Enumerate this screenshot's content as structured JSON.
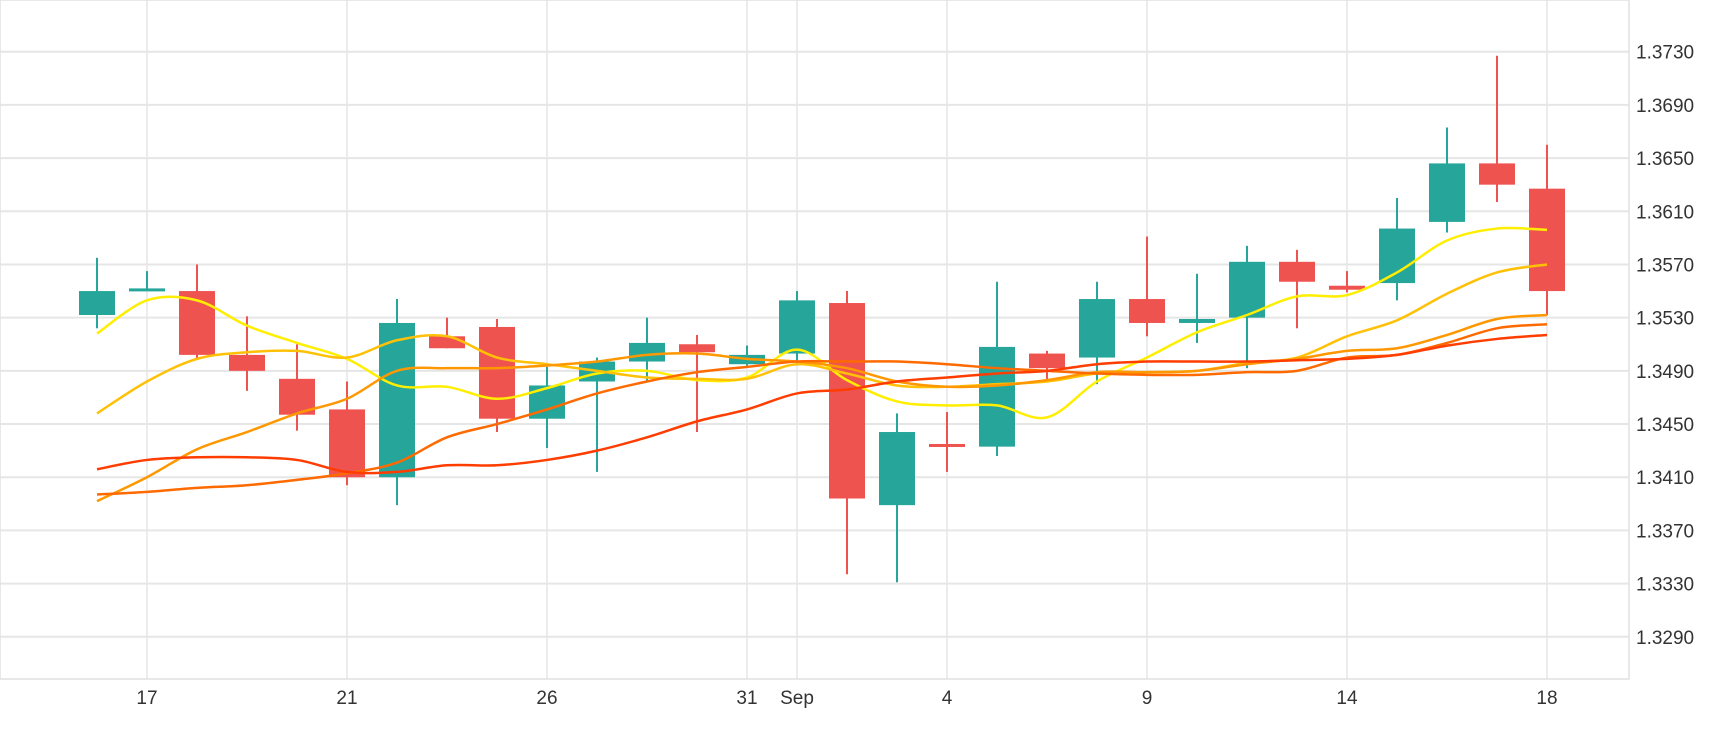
{
  "chart_data": {
    "type": "candlestick",
    "title": "",
    "xlabel": "",
    "ylabel": "",
    "ylim": [
      1.3245,
      1.3775
    ],
    "grid": true,
    "colors": {
      "up": "#26a69a",
      "down": "#ef5350",
      "grid": "#e6e6e6"
    },
    "y_ticks": [
      "1.3730",
      "1.3690",
      "1.3650",
      "1.3610",
      "1.3570",
      "1.3530",
      "1.3490",
      "1.3450",
      "1.3410",
      "1.3370",
      "1.3330",
      "1.3290"
    ],
    "x_ticks": [
      {
        "label": "17",
        "index": 1
      },
      {
        "label": "21",
        "index": 5
      },
      {
        "label": "26",
        "index": 9
      },
      {
        "label": "31",
        "index": 13
      },
      {
        "label": "Sep",
        "index": 14
      },
      {
        "label": "4",
        "index": 17
      },
      {
        "label": "9",
        "index": 21
      },
      {
        "label": "14",
        "index": 25
      },
      {
        "label": "18",
        "index": 29
      }
    ],
    "candles": [
      {
        "o": 1.3532,
        "h": 1.3575,
        "l": 1.3522,
        "c": 1.355
      },
      {
        "o": 1.3551,
        "h": 1.3565,
        "l": 1.355,
        "c": 1.3552
      },
      {
        "o": 1.355,
        "h": 1.357,
        "l": 1.3499,
        "c": 1.3502
      },
      {
        "o": 1.3502,
        "h": 1.3531,
        "l": 1.3475,
        "c": 1.349
      },
      {
        "o": 1.3484,
        "h": 1.351,
        "l": 1.3445,
        "c": 1.3457
      },
      {
        "o": 1.3461,
        "h": 1.3482,
        "l": 1.3404,
        "c": 1.341
      },
      {
        "o": 1.341,
        "h": 1.3544,
        "l": 1.3389,
        "c": 1.3526
      },
      {
        "o": 1.3516,
        "h": 1.353,
        "l": 1.3507,
        "c": 1.3507
      },
      {
        "o": 1.3523,
        "h": 1.3529,
        "l": 1.3444,
        "c": 1.3454
      },
      {
        "o": 1.3454,
        "h": 1.3493,
        "l": 1.3432,
        "c": 1.3479
      },
      {
        "o": 1.3482,
        "h": 1.35,
        "l": 1.3414,
        "c": 1.3497
      },
      {
        "o": 1.3497,
        "h": 1.353,
        "l": 1.3482,
        "c": 1.3511
      },
      {
        "o": 1.351,
        "h": 1.3517,
        "l": 1.3444,
        "c": 1.3504
      },
      {
        "o": 1.3495,
        "h": 1.3509,
        "l": 1.3494,
        "c": 1.3502
      },
      {
        "o": 1.3503,
        "h": 1.355,
        "l": 1.3494,
        "c": 1.3543
      },
      {
        "o": 1.3541,
        "h": 1.355,
        "l": 1.3337,
        "c": 1.3394
      },
      {
        "o": 1.3389,
        "h": 1.3458,
        "l": 1.3331,
        "c": 1.3444
      },
      {
        "o": 1.3435,
        "h": 1.3459,
        "l": 1.3414,
        "c": 1.3433
      },
      {
        "o": 1.3433,
        "h": 1.3557,
        "l": 1.3426,
        "c": 1.3508
      },
      {
        "o": 1.3503,
        "h": 1.3505,
        "l": 1.3483,
        "c": 1.3492
      },
      {
        "o": 1.35,
        "h": 1.3557,
        "l": 1.348,
        "c": 1.3544
      },
      {
        "o": 1.3544,
        "h": 1.3591,
        "l": 1.3516,
        "c": 1.3526
      },
      {
        "o": 1.3526,
        "h": 1.3563,
        "l": 1.3511,
        "c": 1.3529
      },
      {
        "o": 1.353,
        "h": 1.3584,
        "l": 1.3492,
        "c": 1.3572
      },
      {
        "o": 1.3572,
        "h": 1.3581,
        "l": 1.3522,
        "c": 1.3557
      },
      {
        "o": 1.3554,
        "h": 1.3565,
        "l": 1.3549,
        "c": 1.3551
      },
      {
        "o": 1.3556,
        "h": 1.362,
        "l": 1.3543,
        "c": 1.3597
      },
      {
        "o": 1.3602,
        "h": 1.3673,
        "l": 1.3594,
        "c": 1.3646
      },
      {
        "o": 1.3646,
        "h": 1.3727,
        "l": 1.3617,
        "c": 1.363
      },
      {
        "o": 1.3627,
        "h": 1.366,
        "l": 1.3532,
        "c": 1.355
      }
    ],
    "series": [
      {
        "name": "ma-yellow",
        "color": "#ffee00",
        "values": [
          1.3518,
          1.3543,
          1.3543,
          1.3524,
          1.3511,
          1.3499,
          1.3479,
          1.3478,
          1.3469,
          1.3477,
          1.3488,
          1.349,
          1.3483,
          1.3485,
          1.3506,
          1.3483,
          1.3467,
          1.3464,
          1.3464,
          1.3455,
          1.3482,
          1.35,
          1.3519,
          1.3532,
          1.3546,
          1.3547,
          1.3564,
          1.3588,
          1.3597,
          1.3596
        ]
      },
      {
        "name": "ma-amber",
        "color": "#ffc107",
        "values": [
          1.3458,
          1.3482,
          1.3499,
          1.3504,
          1.3505,
          1.35,
          1.3513,
          1.3516,
          1.35,
          1.3495,
          1.349,
          1.3485,
          1.3484,
          1.3484,
          1.3495,
          1.3488,
          1.3479,
          1.3478,
          1.348,
          1.3482,
          1.3488,
          1.3489,
          1.349,
          1.3496,
          1.35,
          1.3516,
          1.3528,
          1.3548,
          1.3564,
          1.357
        ]
      },
      {
        "name": "ma-orange",
        "color": "#ff9800",
        "values": [
          1.3392,
          1.341,
          1.3431,
          1.3444,
          1.3458,
          1.3469,
          1.349,
          1.3492,
          1.3492,
          1.3494,
          1.3497,
          1.3502,
          1.3503,
          1.3499,
          1.3497,
          1.3492,
          1.3482,
          1.3478,
          1.3479,
          1.3483,
          1.3489,
          1.3489,
          1.349,
          1.3495,
          1.3499,
          1.3505,
          1.3507,
          1.3517,
          1.3529,
          1.3532
        ]
      },
      {
        "name": "ma-orange-red",
        "color": "#ff6a00",
        "values": [
          1.3397,
          1.3399,
          1.3402,
          1.3404,
          1.3408,
          1.3413,
          1.3421,
          1.344,
          1.345,
          1.3461,
          1.3473,
          1.3482,
          1.3489,
          1.3493,
          1.3497,
          1.3497,
          1.3497,
          1.3495,
          1.3492,
          1.349,
          1.3488,
          1.3487,
          1.3487,
          1.3489,
          1.349,
          1.35,
          1.3502,
          1.3511,
          1.3522,
          1.3525
        ]
      },
      {
        "name": "ma-red",
        "color": "#ff3d00",
        "values": [
          1.3416,
          1.3423,
          1.3425,
          1.3425,
          1.3423,
          1.3414,
          1.3414,
          1.3419,
          1.3419,
          1.3423,
          1.343,
          1.344,
          1.3452,
          1.3461,
          1.3473,
          1.3476,
          1.3482,
          1.3485,
          1.3488,
          1.349,
          1.3495,
          1.3497,
          1.3497,
          1.3497,
          1.3498,
          1.3499,
          1.3502,
          1.3509,
          1.3514,
          1.3517
        ]
      }
    ]
  }
}
